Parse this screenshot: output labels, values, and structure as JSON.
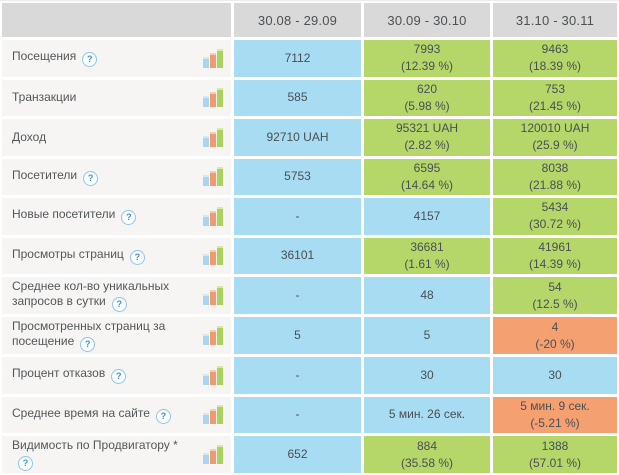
{
  "header": {
    "corner": "",
    "columns": [
      "30.08 - 29.09",
      "30.09 - 30.10",
      "31.10 - 30.11"
    ]
  },
  "colors": {
    "cell_blue": "#a7dcf2",
    "cell_green": "#b5d76a",
    "cell_orange": "#f5a071",
    "header_bg": "#d9d9d9",
    "label_bg": "#f6f5f3",
    "help_icon_blue": "#3f93c9",
    "bar_icon_blue": "#aad5ec",
    "bar_icon_orange": "#f09b6e",
    "bar_icon_green": "#abd15f"
  },
  "icons": {
    "help": "?",
    "bar_chart": "bar-chart-icon"
  },
  "rows": [
    {
      "label": "Посещения",
      "help": true,
      "cells": [
        {
          "value": "7112",
          "color": "blue"
        },
        {
          "value": "7993",
          "delta": "(12.39 %)",
          "color": "green"
        },
        {
          "value": "9463",
          "delta": "(18.39 %)",
          "color": "green"
        }
      ]
    },
    {
      "label": "Транзакции",
      "help": false,
      "cells": [
        {
          "value": "585",
          "color": "blue"
        },
        {
          "value": "620",
          "delta": "(5.98 %)",
          "color": "green"
        },
        {
          "value": "753",
          "delta": "(21.45 %)",
          "color": "green"
        }
      ]
    },
    {
      "label": "Доход",
      "help": false,
      "cells": [
        {
          "value": "92710 UAH",
          "color": "blue"
        },
        {
          "value": "95321 UAH",
          "delta": "(2.82 %)",
          "color": "green"
        },
        {
          "value": "120010 UAH",
          "delta": "(25.9 %)",
          "color": "green"
        }
      ]
    },
    {
      "label": "Посетители",
      "help": true,
      "cells": [
        {
          "value": "5753",
          "color": "blue"
        },
        {
          "value": "6595",
          "delta": "(14.64 %)",
          "color": "green"
        },
        {
          "value": "8038",
          "delta": "(21.88 %)",
          "color": "green"
        }
      ]
    },
    {
      "label": "Новые посетители",
      "help": true,
      "cells": [
        {
          "value": "-",
          "color": "blue"
        },
        {
          "value": "4157",
          "color": "blue"
        },
        {
          "value": "5434",
          "delta": "(30.72 %)",
          "color": "green"
        }
      ]
    },
    {
      "label": "Просмотры страниц",
      "help": true,
      "cells": [
        {
          "value": "36101",
          "color": "blue"
        },
        {
          "value": "36681",
          "delta": "(1.61 %)",
          "color": "green"
        },
        {
          "value": "41961",
          "delta": "(14.39 %)",
          "color": "green"
        }
      ]
    },
    {
      "label": "Среднее кол-во уникальных запросов в сутки",
      "help": true,
      "cells": [
        {
          "value": "-",
          "color": "blue"
        },
        {
          "value": "48",
          "color": "blue"
        },
        {
          "value": "54",
          "delta": "(12.5 %)",
          "color": "green"
        }
      ]
    },
    {
      "label": "Просмотренных страниц за посещение",
      "help": true,
      "cells": [
        {
          "value": "5",
          "color": "blue"
        },
        {
          "value": "5",
          "color": "blue"
        },
        {
          "value": "4",
          "delta": "(-20 %)",
          "color": "orange"
        }
      ]
    },
    {
      "label": "Процент отказов",
      "help": true,
      "cells": [
        {
          "value": "-",
          "color": "blue"
        },
        {
          "value": "30",
          "color": "blue"
        },
        {
          "value": "30",
          "color": "blue"
        }
      ]
    },
    {
      "label": "Среднее время на сайте",
      "help": true,
      "cells": [
        {
          "value": "-",
          "color": "blue"
        },
        {
          "value": "5 мин. 26 сек.",
          "color": "blue"
        },
        {
          "value": "5 мин. 9 сек.",
          "delta": "(-5.21 %)",
          "color": "orange"
        }
      ]
    },
    {
      "label": "Видимость по Продвигатору *",
      "help": true,
      "cells": [
        {
          "value": "652",
          "color": "blue"
        },
        {
          "value": "884",
          "delta": "(35.58 %)",
          "color": "green"
        },
        {
          "value": "1388",
          "delta": "(57.01 %)",
          "color": "green"
        }
      ]
    }
  ]
}
